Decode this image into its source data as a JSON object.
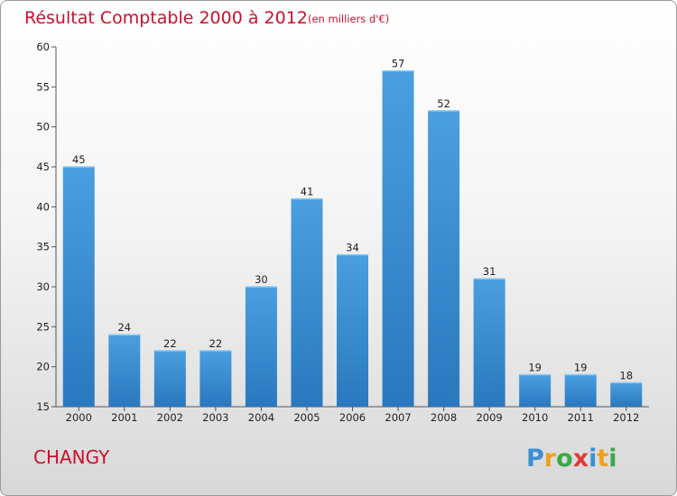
{
  "chart_data": {
    "type": "bar",
    "title": "Résultat Comptable 2000 à 2012",
    "subtitle": "(en milliers d'€)",
    "xlabel": "",
    "ylabel": "",
    "categories": [
      "2000",
      "2001",
      "2002",
      "2003",
      "2004",
      "2005",
      "2006",
      "2007",
      "2008",
      "2009",
      "2010",
      "2011",
      "2012"
    ],
    "values": [
      45,
      24,
      22,
      22,
      30,
      41,
      34,
      57,
      52,
      31,
      19,
      19,
      18
    ],
    "ylim": [
      15,
      60
    ],
    "yticks": [
      15,
      20,
      25,
      30,
      35,
      40,
      45,
      50,
      55,
      60
    ],
    "grid": false,
    "bar_color": "#4a9fe0",
    "bar_color_dark": "#2a78be"
  },
  "footer": {
    "city": "CHANGY",
    "logo_letters": [
      "P",
      "r",
      "o",
      "x",
      "i",
      "t",
      "i"
    ],
    "logo_colors": [
      "#3a8fd8",
      "#f0a020",
      "#3aa848",
      "#e03a3a",
      "#3a8fd8",
      "#f0a020",
      "#3aa848"
    ]
  }
}
